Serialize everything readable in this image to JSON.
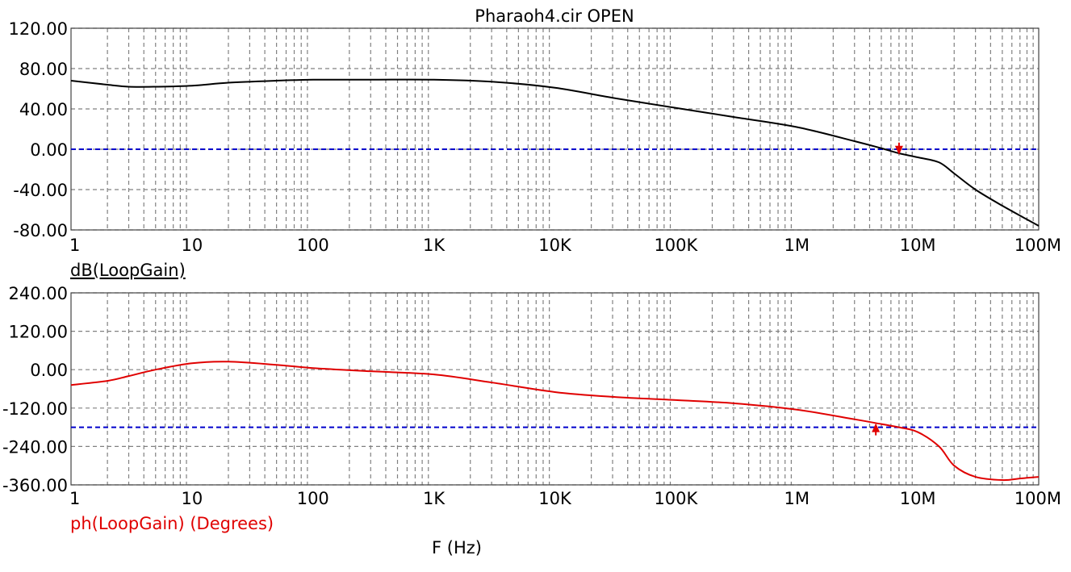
{
  "title": "Pharaoh4.cir OPEN",
  "x_axis_label": "F (Hz)",
  "colors": {
    "gain": "#000000",
    "phase": "#e00000",
    "reference": "#0000cc",
    "grid": "#808080",
    "cursor": "#e00000"
  },
  "chart_data": [
    {
      "type": "line",
      "x_scale": "log",
      "xlim": [
        1,
        100000000
      ],
      "x_ticks": [
        {
          "v": 1,
          "label": "1"
        },
        {
          "v": 10,
          "label": "10"
        },
        {
          "v": 100,
          "label": "100"
        },
        {
          "v": 1000,
          "label": "1K"
        },
        {
          "v": 10000,
          "label": "10K"
        },
        {
          "v": 100000,
          "label": "100K"
        },
        {
          "v": 1000000,
          "label": "1M"
        },
        {
          "v": 10000000,
          "label": "10M"
        },
        {
          "v": 100000000,
          "label": "100M"
        }
      ],
      "ylim": [
        -80,
        120
      ],
      "y_ticks": [
        {
          "v": 120,
          "label": "120.00"
        },
        {
          "v": 80,
          "label": "80.00"
        },
        {
          "v": 40,
          "label": "40.00"
        },
        {
          "v": 0,
          "label": "0.00"
        },
        {
          "v": -40,
          "label": "-40.00"
        },
        {
          "v": -80,
          "label": "-80.00"
        }
      ],
      "ylabel": "dB(LoopGain)",
      "reference_line": 0,
      "cursor": {
        "x": 7000000,
        "y": -3,
        "direction": "down"
      },
      "series": [
        {
          "color": "#000000",
          "x": [
            1,
            2,
            3,
            5,
            10,
            20,
            50,
            100,
            300,
            1000,
            3000,
            10000,
            30000,
            100000,
            300000,
            1000000,
            3000000,
            5000000,
            7000000,
            10000000,
            15000000,
            20000000,
            30000000,
            50000000,
            100000000
          ],
          "y": [
            68,
            64,
            62,
            62,
            63,
            66,
            68,
            69,
            69,
            69,
            67,
            61,
            51,
            41,
            32,
            22,
            8,
            1,
            -4,
            -8,
            -13,
            -24,
            -40,
            -56,
            -76
          ]
        }
      ]
    },
    {
      "type": "line",
      "x_scale": "log",
      "xlim": [
        1,
        100000000
      ],
      "x_ticks": [
        {
          "v": 1,
          "label": "1"
        },
        {
          "v": 10,
          "label": "10"
        },
        {
          "v": 100,
          "label": "100"
        },
        {
          "v": 1000,
          "label": "1K"
        },
        {
          "v": 10000,
          "label": "10K"
        },
        {
          "v": 100000,
          "label": "100K"
        },
        {
          "v": 1000000,
          "label": "1M"
        },
        {
          "v": 10000000,
          "label": "10M"
        },
        {
          "v": 100000000,
          "label": "100M"
        }
      ],
      "ylim": [
        -360,
        240
      ],
      "y_ticks": [
        {
          "v": 240,
          "label": "240.00"
        },
        {
          "v": 120,
          "label": "120.00"
        },
        {
          "v": 0,
          "label": "0.00"
        },
        {
          "v": -120,
          "label": "-120.00"
        },
        {
          "v": -240,
          "label": "-240.00"
        },
        {
          "v": -360,
          "label": "-360.00"
        }
      ],
      "ylabel": "ph(LoopGain) (Degrees)",
      "reference_line": -180,
      "cursor": {
        "x": 4500000,
        "y": -175,
        "direction": "up"
      },
      "series": [
        {
          "color": "#e00000",
          "x": [
            1,
            2,
            3,
            5,
            10,
            20,
            50,
            100,
            300,
            1000,
            3000,
            10000,
            30000,
            100000,
            300000,
            1000000,
            3000000,
            5000000,
            7000000,
            10000000,
            15000000,
            20000000,
            30000000,
            50000000,
            70000000,
            100000000
          ],
          "y": [
            -48,
            -35,
            -20,
            0,
            20,
            25,
            15,
            5,
            -5,
            -15,
            -40,
            -70,
            -85,
            -95,
            -105,
            -125,
            -155,
            -170,
            -180,
            -195,
            -240,
            -300,
            -335,
            -345,
            -340,
            -335
          ]
        }
      ]
    }
  ]
}
